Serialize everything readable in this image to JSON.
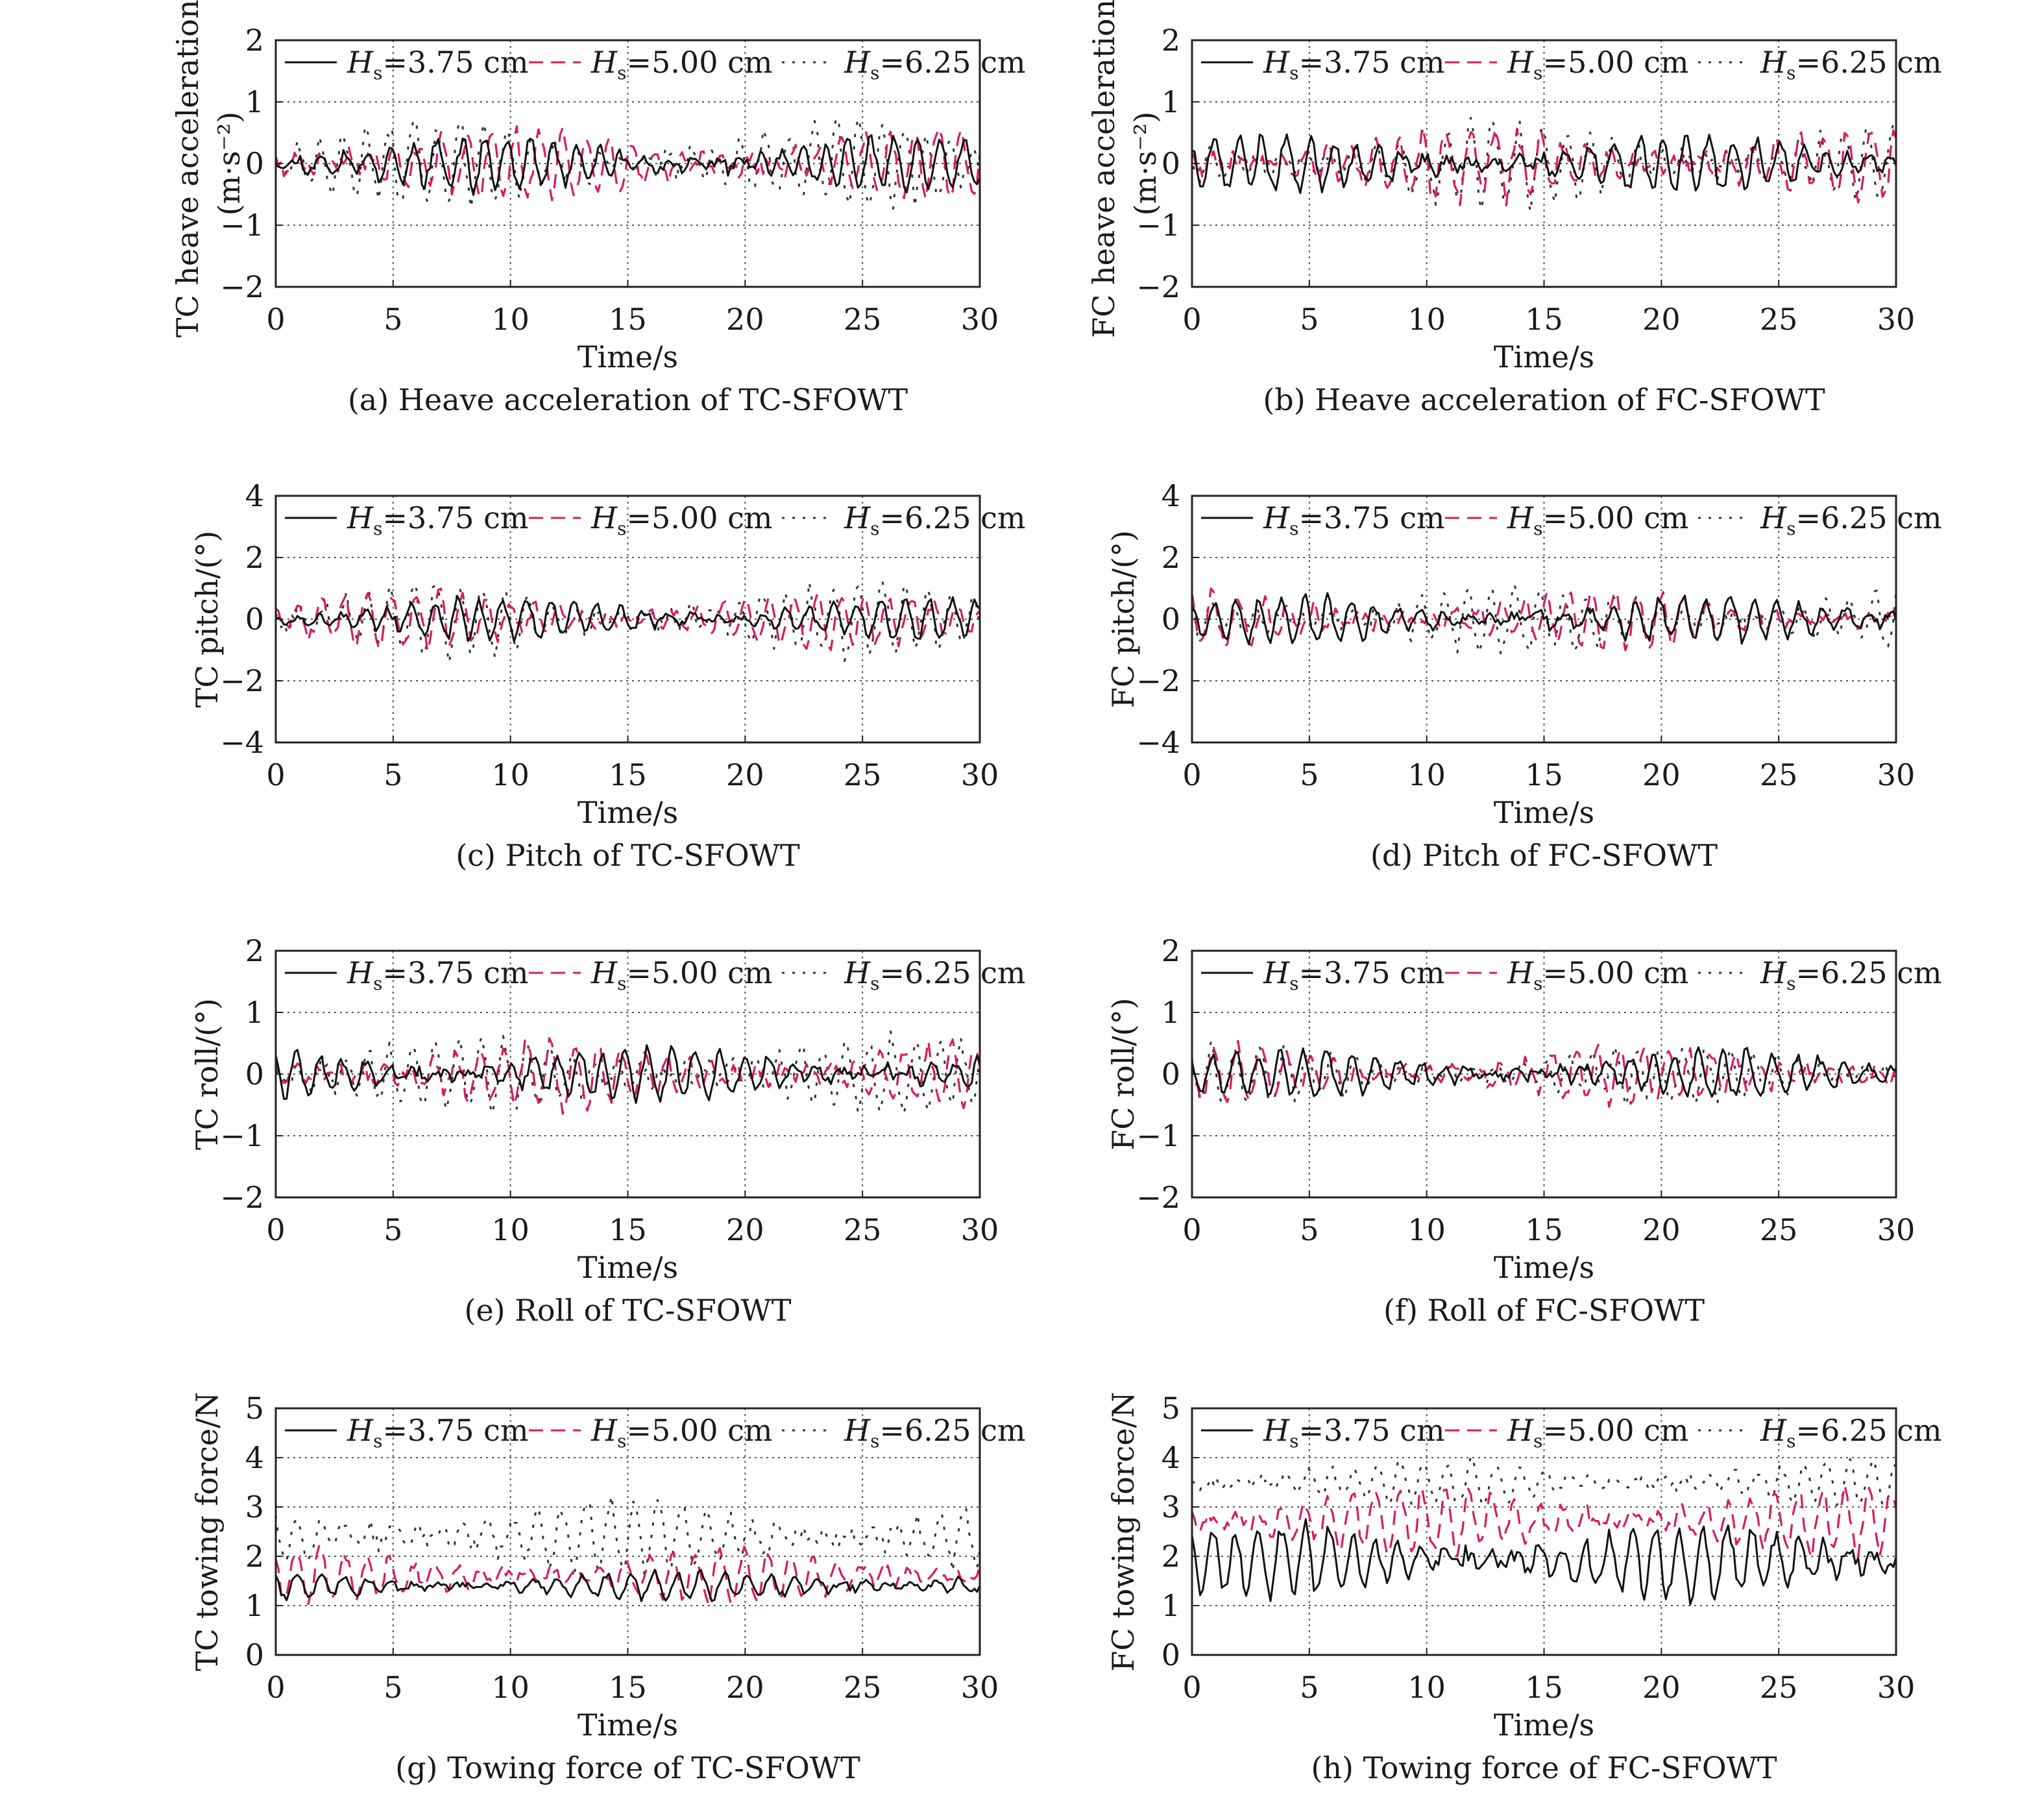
{
  "legend": [
    {
      "prefix": "H",
      "sub": "s",
      "rest": "=3.75 cm",
      "color": "#111111",
      "style": "solid"
    },
    {
      "prefix": "H",
      "sub": "s",
      "rest": "=5.00 cm",
      "color": "#d81b60",
      "style": "dashed"
    },
    {
      "prefix": "H",
      "sub": "s",
      "rest": "=6.25 cm",
      "color": "#333333",
      "style": "dotted"
    }
  ],
  "series_colors": {
    "hs375": "#111111",
    "hs500": "#d81b60",
    "hs625": "#333333",
    "accent": "#e65100"
  },
  "chart_data": [
    {
      "type": "line",
      "title": "",
      "xlabel": "Time/s",
      "ylabel": "TC heave acceleration/",
      "ylabel_unit": "(m·s⁻²)",
      "caption": "(a) Heave acceleration of TC-SFOWT",
      "xlim": [
        0,
        30
      ],
      "xticks": [
        "0",
        "5",
        "10",
        "15",
        "20",
        "25",
        "30"
      ],
      "ylim": [
        -2,
        2
      ],
      "yticks": [
        "−2",
        "−1",
        "0",
        "1",
        "2"
      ],
      "grid": true,
      "legend_position": "top",
      "series_params": {
        "hs375": {
          "base": 0,
          "amp": 0.28,
          "seed": 11
        },
        "hs500": {
          "base": 0,
          "amp": 0.38,
          "seed": 23
        },
        "hs625": {
          "base": 0,
          "amp": 0.45,
          "seed": 37
        }
      }
    },
    {
      "type": "line",
      "title": "",
      "xlabel": "Time/s",
      "ylabel": "FC heave acceleration/",
      "ylabel_unit": "(m·s⁻²)",
      "caption": "(b) Heave acceleration of FC-SFOWT",
      "xlim": [
        0,
        30
      ],
      "xticks": [
        "0",
        "5",
        "10",
        "15",
        "20",
        "25",
        "30"
      ],
      "ylim": [
        -2,
        2
      ],
      "yticks": [
        "−2",
        "−1",
        "0",
        "1",
        "2"
      ],
      "grid": true,
      "legend_position": "top",
      "series_params": {
        "hs375": {
          "base": 0,
          "amp": 0.3,
          "seed": 13
        },
        "hs500": {
          "base": 0,
          "amp": 0.4,
          "seed": 29
        },
        "hs625": {
          "base": 0,
          "amp": 0.45,
          "seed": 41
        }
      }
    },
    {
      "type": "line",
      "title": "",
      "xlabel": "Time/s",
      "ylabel": "TC pitch/(°)",
      "ylabel_unit": "",
      "caption": "(c) Pitch of TC-SFOWT",
      "xlim": [
        0,
        30
      ],
      "xticks": [
        "0",
        "5",
        "10",
        "15",
        "20",
        "25",
        "30"
      ],
      "ylim": [
        -4,
        4
      ],
      "yticks": [
        "−4",
        "−2",
        "0",
        "2",
        "4"
      ],
      "grid": true,
      "legend_position": "top",
      "series_params": {
        "hs375": {
          "base": 0,
          "amp": 0.45,
          "seed": 17
        },
        "hs500": {
          "base": 0,
          "amp": 0.6,
          "seed": 31
        },
        "hs625": {
          "base": 0,
          "amp": 0.8,
          "seed": 43
        }
      }
    },
    {
      "type": "line",
      "title": "",
      "xlabel": "Time/s",
      "ylabel": "FC pitch/(°)",
      "ylabel_unit": "",
      "caption": "(d) Pitch of FC-SFOWT",
      "xlim": [
        0,
        30
      ],
      "xticks": [
        "0",
        "5",
        "10",
        "15",
        "20",
        "25",
        "30"
      ],
      "ylim": [
        -4,
        4
      ],
      "yticks": [
        "−4",
        "−2",
        "0",
        "2",
        "4"
      ],
      "grid": true,
      "legend_position": "top",
      "series_params": {
        "hs375": {
          "base": 0,
          "amp": 0.5,
          "seed": 19
        },
        "hs500": {
          "base": 0,
          "amp": 0.6,
          "seed": 33
        },
        "hs625": {
          "base": 0,
          "amp": 0.7,
          "seed": 47
        }
      }
    },
    {
      "type": "line",
      "title": "",
      "xlabel": "Time/s",
      "ylabel": "TC roll/(°)",
      "ylabel_unit": "",
      "caption": "(e) Roll of TC-SFOWT",
      "xlim": [
        0,
        30
      ],
      "xticks": [
        "0",
        "5",
        "10",
        "15",
        "20",
        "25",
        "30"
      ],
      "ylim": [
        -2,
        2
      ],
      "yticks": [
        "−2",
        "−1",
        "0",
        "1",
        "2"
      ],
      "grid": true,
      "legend_position": "top",
      "series_params": {
        "hs375": {
          "base": 0,
          "amp": 0.3,
          "seed": 21
        },
        "hs500": {
          "base": 0,
          "amp": 0.35,
          "seed": 35
        },
        "hs625": {
          "base": 0,
          "amp": 0.4,
          "seed": 49
        }
      }
    },
    {
      "type": "line",
      "title": "",
      "xlabel": "Time/s",
      "ylabel": "FC roll/(°)",
      "ylabel_unit": "",
      "caption": "(f) Roll of FC-SFOWT",
      "xlim": [
        0,
        30
      ],
      "xticks": [
        "0",
        "5",
        "10",
        "15",
        "20",
        "25",
        "30"
      ],
      "ylim": [
        -2,
        2
      ],
      "yticks": [
        "−2",
        "−1",
        "0",
        "1",
        "2"
      ],
      "grid": true,
      "legend_position": "top",
      "series_params": {
        "hs375": {
          "base": 0,
          "amp": 0.25,
          "seed": 25
        },
        "hs500": {
          "base": 0,
          "amp": 0.3,
          "seed": 39
        },
        "hs625": {
          "base": 0,
          "amp": 0.3,
          "seed": 51
        }
      }
    },
    {
      "type": "line",
      "title": "",
      "xlabel": "Time/s",
      "ylabel": "TC towing force/N",
      "ylabel_unit": "",
      "caption": "(g) Towing force of TC-SFOWT",
      "xlim": [
        0,
        30
      ],
      "xticks": [
        "0",
        "5",
        "10",
        "15",
        "20",
        "25",
        "30"
      ],
      "ylim": [
        0,
        5
      ],
      "yticks": [
        "0",
        "1",
        "2",
        "3",
        "4",
        "5"
      ],
      "grid": true,
      "legend_position": "top",
      "series_params": {
        "hs375": {
          "base": 1.4,
          "amp": 0.2,
          "seed": 27
        },
        "hs500": {
          "base": 1.6,
          "amp": 0.35,
          "seed": 45
        },
        "hs625": {
          "base": 2.4,
          "amp": 0.5,
          "seed": 53
        }
      }
    },
    {
      "type": "line",
      "title": "",
      "xlabel": "Time/s",
      "ylabel": "FC towing force/N",
      "ylabel_unit": "",
      "caption": "(h) Towing force of FC-SFOWT",
      "xlim": [
        0,
        30
      ],
      "xticks": [
        "0",
        "5",
        "10",
        "15",
        "20",
        "25",
        "30"
      ],
      "ylim": [
        0,
        5
      ],
      "yticks": [
        "0",
        "1",
        "2",
        "3",
        "4",
        "5"
      ],
      "grid": true,
      "legend_position": "top",
      "series_params": {
        "hs375": {
          "base": 1.9,
          "amp": 0.5,
          "seed": 57
        },
        "hs500": {
          "base": 2.7,
          "amp": 0.45,
          "seed": 61
        },
        "hs625": {
          "base": 3.5,
          "amp": 0.3,
          "seed": 67
        }
      }
    }
  ]
}
